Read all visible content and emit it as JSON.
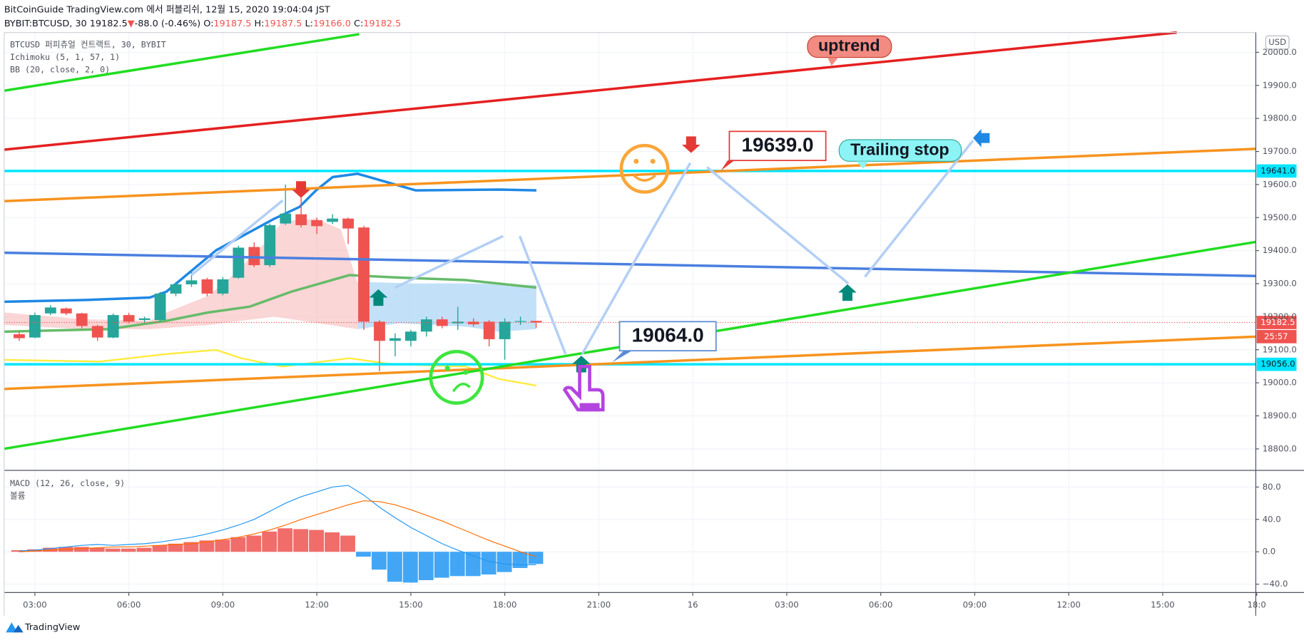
{
  "header": {
    "publisher": "BitCoinGuide TradingView.com 에서 퍼블리쉬, 12월 15, 2020 19:04:04 JST",
    "ohlc_line": [
      {
        "text": "BYBIT:BTCUSD, 30 19182.5",
        "color": "#131722"
      },
      {
        "text": "▼",
        "color": "#ef5350"
      },
      {
        "text": "-88.0 (-0.46%) O:",
        "color": "#131722"
      },
      {
        "text": "19187.5",
        "color": "#ef5350"
      },
      {
        "text": " H:",
        "color": "#131722"
      },
      {
        "text": "19187.5",
        "color": "#ef5350"
      },
      {
        "text": " L:",
        "color": "#131722"
      },
      {
        "text": "19166.0",
        "color": "#ef5350"
      },
      {
        "text": " C:",
        "color": "#131722"
      },
      {
        "text": "19182.5",
        "color": "#ef5350"
      }
    ]
  },
  "legend": [
    "BTCUSD 퍼피츄얼 컨트랙트, 30, BYBIT",
    "Ichimoku (5, 1, 57, 1)",
    "BB (20, close, 2, 0)"
  ],
  "macd_legend": [
    "MACD (12, 26, close, 9)",
    "볼륨"
  ],
  "annotations": [
    "uptrend",
    "19639.0",
    "Trailing stop",
    "19064.0"
  ],
  "currency": "USD",
  "footer": "TradingView",
  "chart_data": [
    {
      "type": "candlestick",
      "x": [
        2.5,
        3,
        3.5,
        4,
        4.5,
        5,
        5.5,
        6,
        6.5,
        7,
        7.5,
        8,
        8.5,
        9,
        9.5,
        10,
        10.5,
        11,
        11.5,
        12,
        12.5,
        13,
        13.5,
        14,
        14.5,
        15,
        15.5,
        16,
        16.5,
        17,
        17.5,
        18,
        18.5,
        19
      ],
      "open": [
        19147,
        19137,
        19210,
        19225,
        19210,
        19172,
        19137,
        19205,
        19190,
        19190,
        19270,
        19298,
        19313,
        19270,
        19318,
        19411,
        19356,
        19482,
        19510,
        19492,
        19487,
        19497,
        19470,
        19185,
        19127,
        19127,
        19155,
        19192,
        19180,
        19185,
        19185,
        19132,
        19185,
        19187.5
      ],
      "high": [
        19155,
        19212,
        19235,
        19228,
        19212,
        19175,
        19210,
        19212,
        19200,
        19275,
        19305,
        19340,
        19318,
        19320,
        19415,
        19425,
        19482,
        19600,
        19560,
        19500,
        19510,
        19500,
        19475,
        19190,
        19150,
        19160,
        19200,
        19200,
        19230,
        19195,
        19190,
        19195,
        19200,
        19187.5
      ],
      "low": [
        19127,
        19135,
        19205,
        19205,
        19165,
        19127,
        19135,
        19180,
        19180,
        19185,
        19262,
        19290,
        19262,
        19265,
        19315,
        19350,
        19350,
        19478,
        19470,
        19450,
        19480,
        19420,
        19160,
        19035,
        19080,
        19110,
        19140,
        19165,
        19160,
        19170,
        19110,
        19070,
        19175,
        19166
      ],
      "close": [
        19135,
        19205,
        19228,
        19210,
        19172,
        19137,
        19205,
        19185,
        19195,
        19270,
        19298,
        19310,
        19270,
        19313,
        19409,
        19356,
        19477,
        19512,
        19477,
        19474,
        19497,
        19467,
        19185,
        19127,
        19135,
        19155,
        19192,
        19172,
        19185,
        19177,
        19132,
        19185,
        19187,
        19182.5
      ],
      "up_color": "#26a69a",
      "down_color": "#ef5350",
      "xlim": [
        2.02,
        41.97
      ],
      "xticks": [
        {
          "value": 3,
          "label": "03:00"
        },
        {
          "value": 6,
          "label": "06:00"
        },
        {
          "value": 9,
          "label": "09:00"
        },
        {
          "value": 12,
          "label": "12:00"
        },
        {
          "value": 15,
          "label": "15:00"
        },
        {
          "value": 18,
          "label": "18:00"
        },
        {
          "value": 21,
          "label": "21:00"
        },
        {
          "value": 24,
          "label": "16"
        },
        {
          "value": 27,
          "label": "03:00"
        },
        {
          "value": 30,
          "label": "06:00"
        },
        {
          "value": 33,
          "label": "09:00"
        },
        {
          "value": 36,
          "label": "12:00"
        },
        {
          "value": 39,
          "label": "15:00"
        },
        {
          "value": 42,
          "label": "18:0"
        }
      ],
      "ylim": [
        18735,
        20060
      ],
      "yticks": [
        {
          "value": 18800,
          "label": "18800.0"
        },
        {
          "value": 18900,
          "label": "18900.0"
        },
        {
          "value": 19000,
          "label": "19000.0"
        },
        {
          "value": 19100,
          "label": "19100.0"
        },
        {
          "value": 19200,
          "label": "19200.0"
        },
        {
          "value": 19300,
          "label": "19300.0"
        },
        {
          "value": 19400,
          "label": "19400.0"
        },
        {
          "value": 19500,
          "label": "19500.0"
        },
        {
          "value": 19600,
          "label": "19600.0"
        },
        {
          "value": 19700,
          "label": "19700.0"
        },
        {
          "value": 19800,
          "label": "19800.0"
        },
        {
          "value": 19900,
          "label": "19900.0"
        },
        {
          "value": 20000,
          "label": "20000.0"
        }
      ],
      "levels": [
        {
          "value": 19641,
          "label": "19641.0",
          "color": "#00e5ff"
        },
        {
          "value": 19056,
          "label": "19056.0",
          "color": "#00e5ff"
        }
      ],
      "last_price": {
        "value": 19182.5,
        "label": "19182.5",
        "color": "#ef5350"
      },
      "countdown": "25:57",
      "grid": true
    },
    {
      "type": "macd",
      "histogram": [
        2,
        3,
        5,
        6,
        6,
        5,
        4,
        4,
        5,
        8,
        10,
        12,
        14,
        15,
        18,
        20,
        25,
        29,
        28,
        27,
        24,
        20,
        -6,
        -22,
        -37,
        -38,
        -35,
        -32,
        -30,
        -30,
        -28,
        -25,
        -20,
        -15
      ],
      "macd": [
        1,
        2,
        4,
        6,
        8,
        9,
        8,
        9,
        10,
        12,
        15,
        18,
        22,
        27,
        33,
        40,
        50,
        60,
        68,
        74,
        80,
        82,
        70,
        55,
        42,
        30,
        20,
        10,
        2,
        -5,
        -12,
        -15,
        -16,
        -16
      ],
      "signal": [
        0,
        1,
        2,
        3,
        4,
        5,
        6,
        6,
        7,
        8,
        9,
        10,
        12,
        15,
        18,
        22,
        27,
        33,
        40,
        46,
        52,
        58,
        63,
        62,
        58,
        52,
        45,
        38,
        30,
        22,
        14,
        7,
        0,
        -6
      ],
      "positive_color": "#ef5350",
      "negative_color": "#2196f3",
      "macd_color": "#2196f3",
      "signal_color": "#ff6d00",
      "ylim": [
        -50.3,
        99.5
      ],
      "yticks": [
        {
          "value": 80,
          "label": "80.0"
        },
        {
          "value": 40,
          "label": "40.0"
        },
        {
          "value": 0,
          "label": "0.0"
        },
        {
          "value": -40,
          "label": "−40.0"
        }
      ],
      "grid": true
    }
  ]
}
